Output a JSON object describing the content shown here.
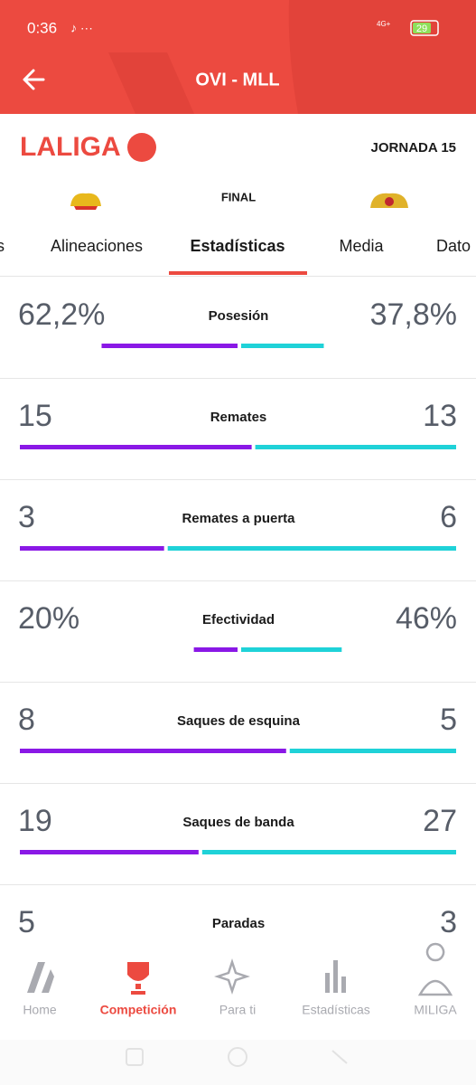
{
  "status_bar": {
    "time": "0:36",
    "network": "4G+",
    "battery": "29"
  },
  "header": {
    "title": "OVI - MLL"
  },
  "competition": {
    "logo": "LALIGA",
    "matchday": "JORNADA 15",
    "status": "FINAL"
  },
  "tabs": {
    "items": [
      "s",
      "Alineaciones",
      "Estadísticas",
      "Media",
      "Dato"
    ],
    "active": 2
  },
  "stats": [
    {
      "label": "Posesión",
      "home": {
        "value": 62.2,
        "label": "62,2%"
      },
      "away": {
        "value": 37.8,
        "label": "37,8%"
      }
    },
    {
      "label": "Remates",
      "home": 15,
      "away": 13
    },
    {
      "label": "Remates a puerta",
      "home": 3,
      "away": 6
    },
    {
      "label": "Efectividad",
      "home": {
        "value": 20,
        "label": "20%"
      },
      "away": {
        "value": 46,
        "label": "46%"
      }
    },
    {
      "label": "Saques de esquina",
      "home": 8,
      "away": 5
    },
    {
      "label": "Saques de banda",
      "home": 19,
      "away": 27
    },
    {
      "label": "Paradas",
      "home": 5,
      "away": 3
    }
  ],
  "nav": {
    "items": [
      "Home",
      "Competición",
      "Para ti",
      "Estadísticas",
      "MILIGA"
    ],
    "active": 1
  }
}
